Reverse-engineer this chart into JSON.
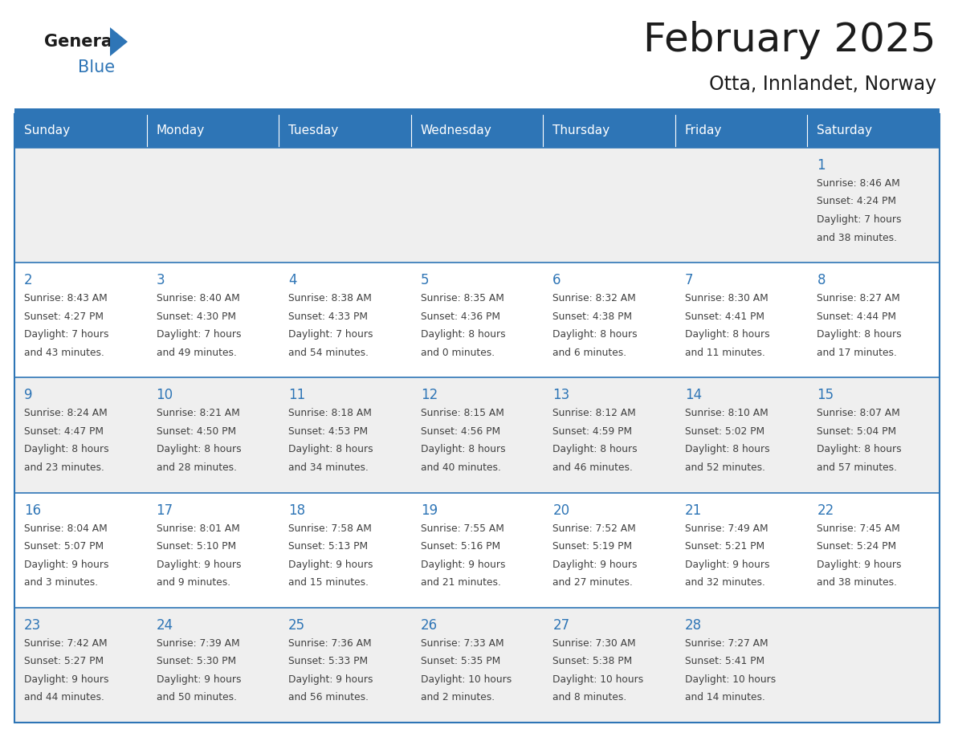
{
  "title": "February 2025",
  "subtitle": "Otta, Innlandet, Norway",
  "header_bg": "#2E75B6",
  "header_text_color": "#FFFFFF",
  "border_color": "#2E75B6",
  "text_color": "#404040",
  "day_number_color": "#2E75B6",
  "cell_bg_light": "#EFEFEF",
  "cell_bg_white": "#FFFFFF",
  "days_of_week": [
    "Sunday",
    "Monday",
    "Tuesday",
    "Wednesday",
    "Thursday",
    "Friday",
    "Saturday"
  ],
  "weeks": [
    [
      {
        "day": "",
        "info": ""
      },
      {
        "day": "",
        "info": ""
      },
      {
        "day": "",
        "info": ""
      },
      {
        "day": "",
        "info": ""
      },
      {
        "day": "",
        "info": ""
      },
      {
        "day": "",
        "info": ""
      },
      {
        "day": "1",
        "info": "Sunrise: 8:46 AM\nSunset: 4:24 PM\nDaylight: 7 hours\nand 38 minutes."
      }
    ],
    [
      {
        "day": "2",
        "info": "Sunrise: 8:43 AM\nSunset: 4:27 PM\nDaylight: 7 hours\nand 43 minutes."
      },
      {
        "day": "3",
        "info": "Sunrise: 8:40 AM\nSunset: 4:30 PM\nDaylight: 7 hours\nand 49 minutes."
      },
      {
        "day": "4",
        "info": "Sunrise: 8:38 AM\nSunset: 4:33 PM\nDaylight: 7 hours\nand 54 minutes."
      },
      {
        "day": "5",
        "info": "Sunrise: 8:35 AM\nSunset: 4:36 PM\nDaylight: 8 hours\nand 0 minutes."
      },
      {
        "day": "6",
        "info": "Sunrise: 8:32 AM\nSunset: 4:38 PM\nDaylight: 8 hours\nand 6 minutes."
      },
      {
        "day": "7",
        "info": "Sunrise: 8:30 AM\nSunset: 4:41 PM\nDaylight: 8 hours\nand 11 minutes."
      },
      {
        "day": "8",
        "info": "Sunrise: 8:27 AM\nSunset: 4:44 PM\nDaylight: 8 hours\nand 17 minutes."
      }
    ],
    [
      {
        "day": "9",
        "info": "Sunrise: 8:24 AM\nSunset: 4:47 PM\nDaylight: 8 hours\nand 23 minutes."
      },
      {
        "day": "10",
        "info": "Sunrise: 8:21 AM\nSunset: 4:50 PM\nDaylight: 8 hours\nand 28 minutes."
      },
      {
        "day": "11",
        "info": "Sunrise: 8:18 AM\nSunset: 4:53 PM\nDaylight: 8 hours\nand 34 minutes."
      },
      {
        "day": "12",
        "info": "Sunrise: 8:15 AM\nSunset: 4:56 PM\nDaylight: 8 hours\nand 40 minutes."
      },
      {
        "day": "13",
        "info": "Sunrise: 8:12 AM\nSunset: 4:59 PM\nDaylight: 8 hours\nand 46 minutes."
      },
      {
        "day": "14",
        "info": "Sunrise: 8:10 AM\nSunset: 5:02 PM\nDaylight: 8 hours\nand 52 minutes."
      },
      {
        "day": "15",
        "info": "Sunrise: 8:07 AM\nSunset: 5:04 PM\nDaylight: 8 hours\nand 57 minutes."
      }
    ],
    [
      {
        "day": "16",
        "info": "Sunrise: 8:04 AM\nSunset: 5:07 PM\nDaylight: 9 hours\nand 3 minutes."
      },
      {
        "day": "17",
        "info": "Sunrise: 8:01 AM\nSunset: 5:10 PM\nDaylight: 9 hours\nand 9 minutes."
      },
      {
        "day": "18",
        "info": "Sunrise: 7:58 AM\nSunset: 5:13 PM\nDaylight: 9 hours\nand 15 minutes."
      },
      {
        "day": "19",
        "info": "Sunrise: 7:55 AM\nSunset: 5:16 PM\nDaylight: 9 hours\nand 21 minutes."
      },
      {
        "day": "20",
        "info": "Sunrise: 7:52 AM\nSunset: 5:19 PM\nDaylight: 9 hours\nand 27 minutes."
      },
      {
        "day": "21",
        "info": "Sunrise: 7:49 AM\nSunset: 5:21 PM\nDaylight: 9 hours\nand 32 minutes."
      },
      {
        "day": "22",
        "info": "Sunrise: 7:45 AM\nSunset: 5:24 PM\nDaylight: 9 hours\nand 38 minutes."
      }
    ],
    [
      {
        "day": "23",
        "info": "Sunrise: 7:42 AM\nSunset: 5:27 PM\nDaylight: 9 hours\nand 44 minutes."
      },
      {
        "day": "24",
        "info": "Sunrise: 7:39 AM\nSunset: 5:30 PM\nDaylight: 9 hours\nand 50 minutes."
      },
      {
        "day": "25",
        "info": "Sunrise: 7:36 AM\nSunset: 5:33 PM\nDaylight: 9 hours\nand 56 minutes."
      },
      {
        "day": "26",
        "info": "Sunrise: 7:33 AM\nSunset: 5:35 PM\nDaylight: 10 hours\nand 2 minutes."
      },
      {
        "day": "27",
        "info": "Sunrise: 7:30 AM\nSunset: 5:38 PM\nDaylight: 10 hours\nand 8 minutes."
      },
      {
        "day": "28",
        "info": "Sunrise: 7:27 AM\nSunset: 5:41 PM\nDaylight: 10 hours\nand 14 minutes."
      },
      {
        "day": "",
        "info": ""
      }
    ]
  ]
}
